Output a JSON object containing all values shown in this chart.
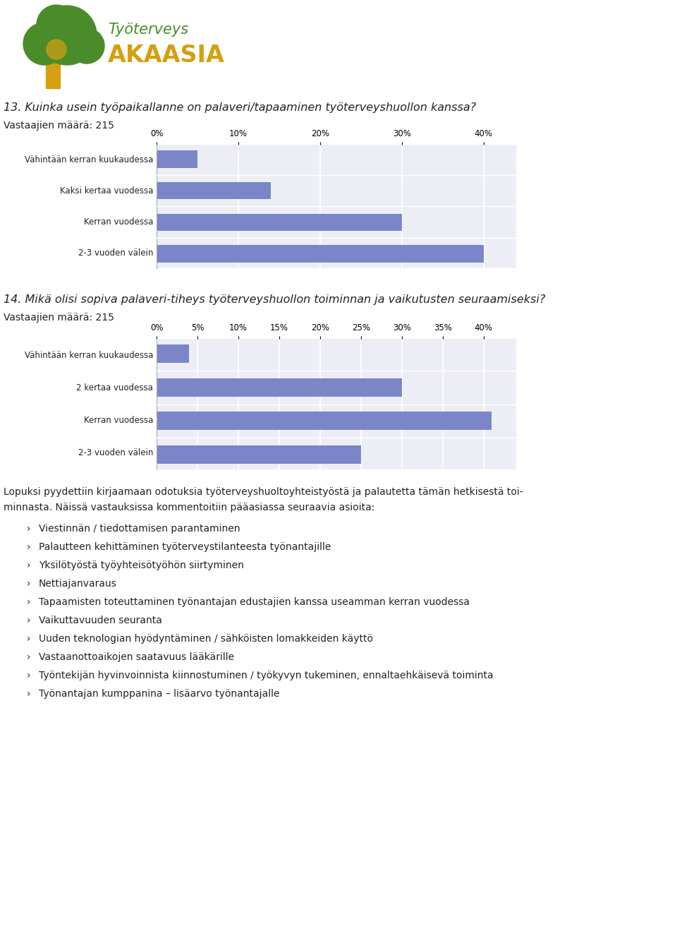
{
  "q13_title": "13. Kuinka usein työpaikallanne on palaveri/tapaaminen työterveyshuollon kanssa?",
  "q13_respondents": "Vastaajien määrä: 215",
  "q13_categories": [
    "Vähintään kerran kuukaudessa",
    "Kaksi kertaa vuodessa",
    "Kerran vuodessa",
    "2-3 vuoden välein"
  ],
  "q13_values": [
    5,
    14,
    30,
    40
  ],
  "q13_xlim": [
    0,
    44
  ],
  "q13_xticks": [
    0,
    10,
    20,
    30,
    40
  ],
  "q13_xtick_labels": [
    "0%",
    "10%",
    "20%",
    "30%",
    "40%"
  ],
  "q14_title": "14. Mikä olisi sopiva palaveri­tiheys työterveyshuollon toiminnan ja vaikutusten seuraamiseksi?",
  "q14_respondents": "Vastaajien määrä: 215",
  "q14_categories": [
    "Vähintään kerran kuukaudessa",
    "2 kertaa vuodessa",
    "Kerran vuodessa",
    "2-3 vuoden välein"
  ],
  "q14_values": [
    4,
    30,
    41,
    25
  ],
  "q14_xlim": [
    0,
    44
  ],
  "q14_xticks": [
    0,
    5,
    10,
    15,
    20,
    25,
    30,
    35,
    40
  ],
  "q14_xtick_labels": [
    "0%",
    "5%",
    "10%",
    "15%",
    "20%",
    "25%",
    "30%",
    "35%",
    "40%"
  ],
  "bar_color": "#7b86c8",
  "chart_bg": "#edeef5",
  "grid_color": "#ffffff",
  "text_block_header1": "Lopuksi pyydettiin kirjaamaan odotuksia työterveyshuoltoyhteistyöstä ja palautetta tämän hetkisestä toi-",
  "text_block_header2": "minnasta. Näissä vastauksissa kommentoitiin pääasiassa seuraavia asioita:",
  "bullet_items": [
    "Viestinnän / tiedottamisen parantaminen",
    "Palautteen kehittäminen työterveystilanteesta työnantajille",
    "Yksilötyöstä työyhteisötyöhön siirtyminen",
    "Nettiajanvaraus",
    "Tapaamisten toteuttaminen työnantajan edustajien kanssa useamman kerran vuodessa",
    "Vaikuttavuuden seuranta",
    "Uuden teknologian hyödyntäminen / sähköisten lomakkeiden käyttö",
    "Vastaanottoaikojen saatavuus lääkärille",
    "Työntekijän hyvinvoinnista kiinnostuminen / työkyvyn tukeminen, ennaltaehkäisevä toiminta",
    "Työnantajan kumppanina – lisäarvo työnantajalle"
  ],
  "font_color": "#222222",
  "label_fontsize": 8.5,
  "title_fontsize": 11.5,
  "respondents_fontsize": 10,
  "tick_fontsize": 8.5,
  "text_fontsize": 10,
  "bullet_fontsize": 10,
  "logo_green": "#4a8c2a",
  "logo_yellow": "#d4a010",
  "logo_text_green": "#4a8c2a"
}
